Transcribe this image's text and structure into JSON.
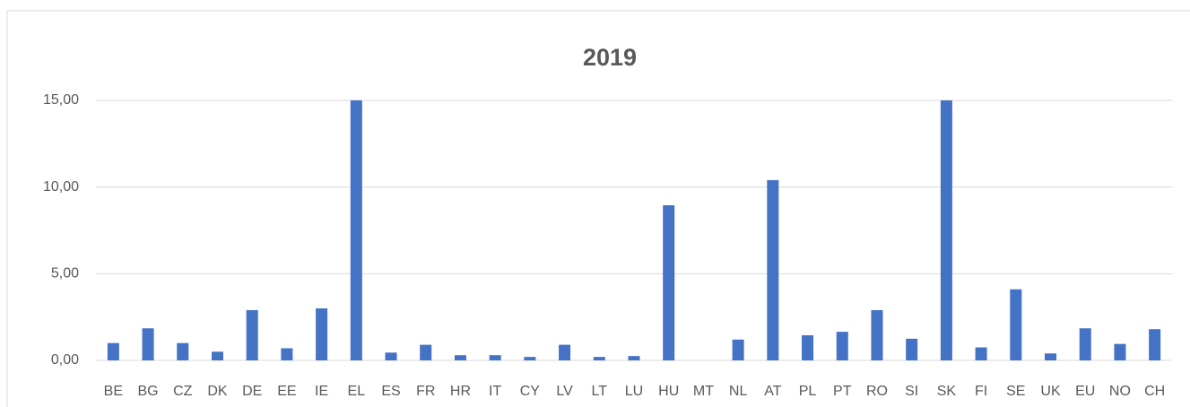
{
  "chart_data": {
    "type": "bar",
    "title": "2019",
    "categories": [
      "BE",
      "BG",
      "CZ",
      "DK",
      "DE",
      "EE",
      "IE",
      "EL",
      "ES",
      "FR",
      "HR",
      "IT",
      "CY",
      "LV",
      "LT",
      "LU",
      "HU",
      "MT",
      "NL",
      "AT",
      "PL",
      "PT",
      "RO",
      "SI",
      "SK",
      "FI",
      "SE",
      "UK",
      "EU",
      "NO",
      "CH"
    ],
    "values": [
      1.0,
      1.85,
      1.0,
      0.5,
      2.9,
      0.7,
      3.0,
      15,
      0.45,
      0.9,
      0.3,
      0.3,
      0.2,
      0.9,
      0.2,
      0.25,
      8.95,
      0,
      1.2,
      10.4,
      1.45,
      1.65,
      2.9,
      1.25,
      15,
      0.75,
      4.1,
      0.4,
      1.85,
      0.95,
      1.8
    ],
    "color": "#4472c4",
    "ylim": [
      0,
      15
    ],
    "yticks": [
      {
        "value": 0,
        "label": "0,00"
      },
      {
        "value": 5,
        "label": "5,00"
      },
      {
        "value": 10,
        "label": "10,00"
      },
      {
        "value": 15,
        "label": "15,00"
      }
    ],
    "grid": true
  }
}
